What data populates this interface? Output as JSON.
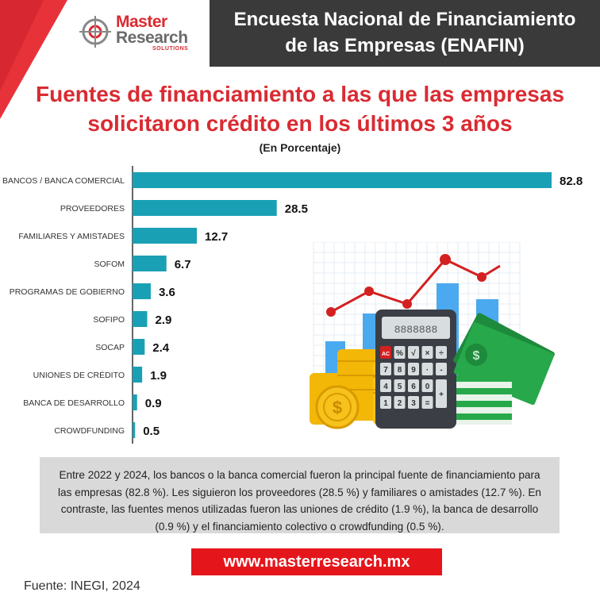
{
  "logo": {
    "line1": "Master",
    "line2": "Research",
    "line3": "SOLUTIONS"
  },
  "header": {
    "title_line1": "Encuesta Nacional de Financiamiento",
    "title_line2": "de las Empresas (ENAFIN)"
  },
  "colors": {
    "bar": "#1aa0b4",
    "accent": "#e4161c",
    "header_bg": "#3a3a3a",
    "summary_bg": "#d9d9d9"
  },
  "chart_data": {
    "type": "bar",
    "orientation": "horizontal",
    "title": "Fuentes de financiamiento a las que las empresas solicitaron crédito en los últimos 3 años",
    "title_line1": "Fuentes de financiamiento a las que las empresas",
    "title_line2": "solicitaron crédito en los últimos 3 años",
    "subtitle": "(En Porcentaje)",
    "categories": [
      "BANCOS / BANCA COMERCIAL",
      "PROVEEDORES",
      "FAMILIARES Y AMISTADES",
      "SOFOM",
      "PROGRAMAS DE GOBIERNO",
      "SOFIPO",
      "SOCAP",
      "UNIONES DE CRÉDITO",
      "BANCA DE DESARROLLO",
      "CROWDFUNDING"
    ],
    "values": [
      82.8,
      28.5,
      12.7,
      6.7,
      3.6,
      2.9,
      2.4,
      1.9,
      0.9,
      0.5
    ],
    "value_labels": [
      "82.8",
      "28.5",
      "12.7",
      "6.7",
      "3.6",
      "2.9",
      "2.4",
      "1.9",
      "0.9",
      "0.5"
    ],
    "xlim": [
      0,
      82.8
    ],
    "grid": false,
    "legend": "none"
  },
  "summary": {
    "text": "Entre 2022 y 2024, los bancos o la banca comercial fueron la principal fuente de financiamiento para las empresas (82.8 %). Les siguieron los proveedores (28.5 %) y familiares o amistades (12.7 %). En contraste, las fuentes menos utilizadas fueron las uniones de crédito (1.9 %), la banca de desarrollo (0.9 %) y el financiamiento colectivo o crowdfunding (0.5 %)."
  },
  "website": "www.masterresearch.mx",
  "source": "Fuente: INEGI, 2024",
  "illustration": {
    "calculator_keys": [
      "AC",
      "%",
      "√",
      "×",
      "÷",
      "7",
      "8",
      "9",
      "·",
      "-",
      "4",
      "5",
      "6",
      "0",
      "+",
      "1",
      "2",
      "3",
      "="
    ],
    "coin_symbol": "$",
    "bill_symbol": "$"
  }
}
